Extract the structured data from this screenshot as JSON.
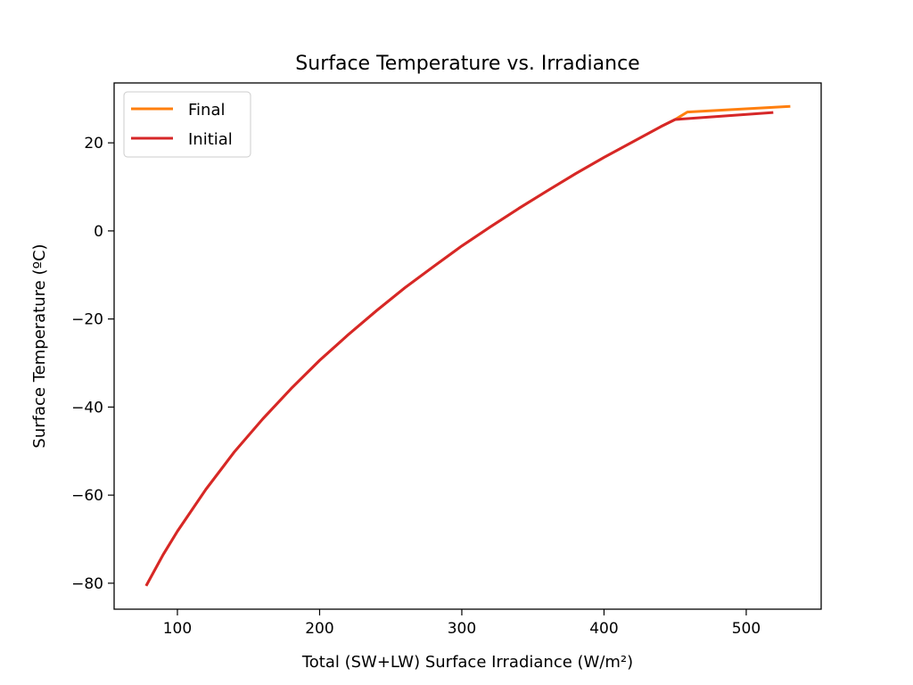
{
  "chart_data": {
    "type": "line",
    "title": "Surface Temperature vs. Irradiance",
    "xlabel": "Total (SW+LW) Surface Irradiance (W/m²)",
    "ylabel": "Surface Temperature (ºC)",
    "xlim": [
      55.5,
      552.7
    ],
    "ylim": [
      -85.9,
      33.6
    ],
    "xticks": [
      100,
      200,
      300,
      400,
      500
    ],
    "yticks": [
      -80,
      -60,
      -40,
      -20,
      0,
      20
    ],
    "xtick_labels": [
      "100",
      "200",
      "300",
      "400",
      "500"
    ],
    "ytick_labels": [
      "−80",
      "−60",
      "−40",
      "−20",
      "0",
      "20"
    ],
    "grid": false,
    "legend_position": "upper-left",
    "series": [
      {
        "name": "Final",
        "color": "#ff7f0e",
        "x": [
          78,
          90,
          100,
          120,
          140,
          160,
          180,
          200,
          220,
          240,
          260,
          280,
          300,
          320,
          340,
          360,
          380,
          400,
          420,
          440,
          450,
          458.6,
          531
        ],
        "y": [
          -80.6,
          -73.5,
          -68.2,
          -58.7,
          -50.2,
          -42.7,
          -35.8,
          -29.4,
          -23.6,
          -18.1,
          -12.9,
          -8.1,
          -3.4,
          0.9,
          5.1,
          9.1,
          13.0,
          16.7,
          20.2,
          23.7,
          25.3,
          27.0,
          28.3
        ]
      },
      {
        "name": "Initial",
        "color": "#d62728",
        "x": [
          78,
          90,
          100,
          120,
          140,
          160,
          180,
          200,
          220,
          240,
          260,
          280,
          300,
          320,
          340,
          360,
          380,
          400,
          420,
          440,
          450,
          519
        ],
        "y": [
          -80.6,
          -73.5,
          -68.2,
          -58.7,
          -50.2,
          -42.7,
          -35.8,
          -29.4,
          -23.6,
          -18.1,
          -12.9,
          -8.1,
          -3.4,
          0.9,
          5.1,
          9.1,
          13.0,
          16.7,
          20.2,
          23.7,
          25.3,
          26.9
        ]
      }
    ]
  }
}
